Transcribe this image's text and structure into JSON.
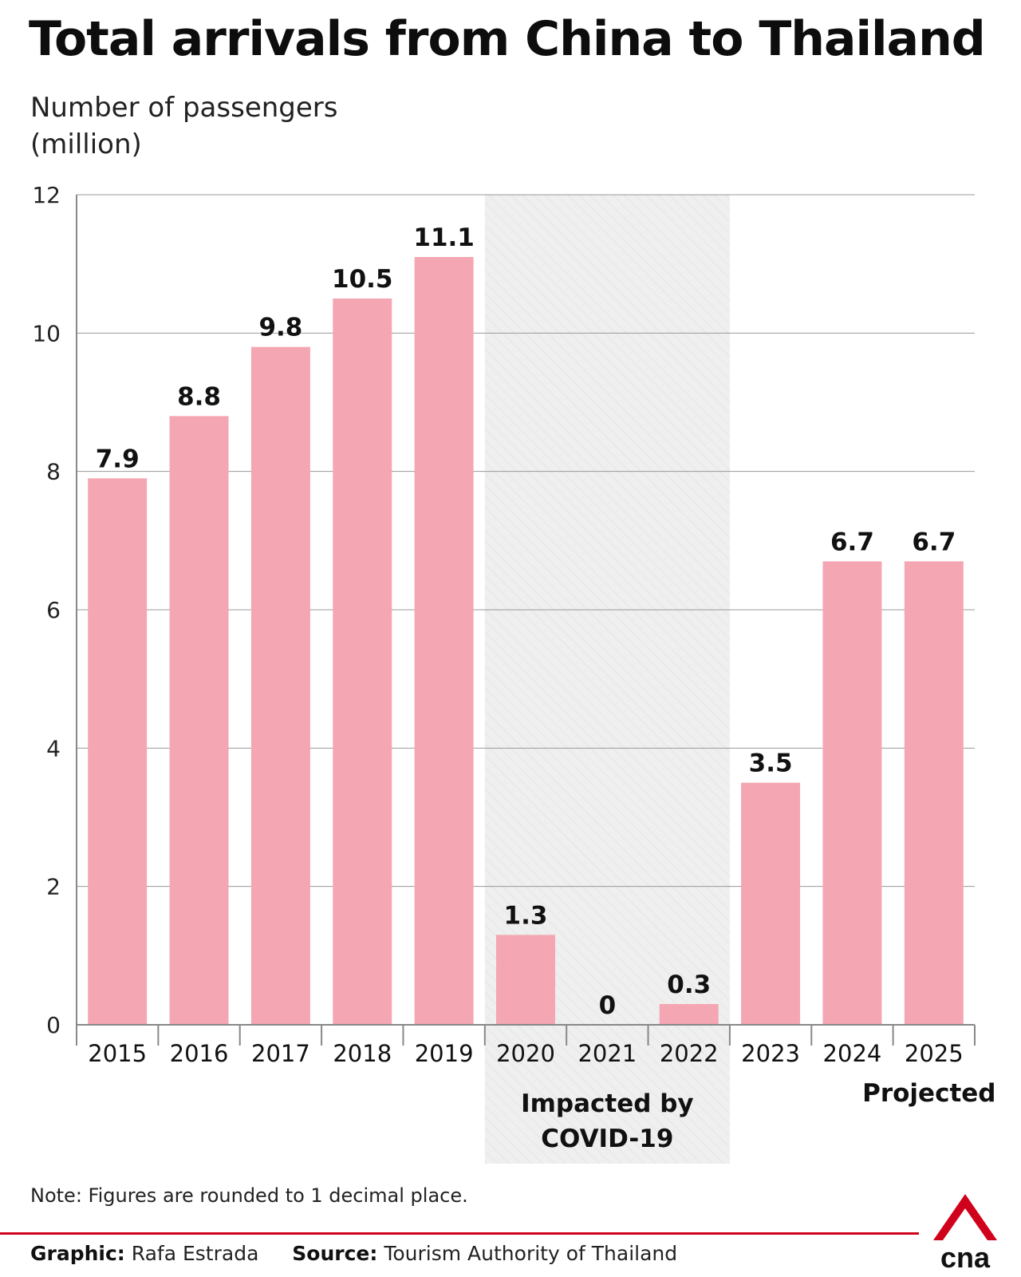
{
  "title": "Total arrivals from China to Thailand",
  "ylabel_lines": [
    "Number of passengers",
    "(million)"
  ],
  "chart_data": {
    "type": "bar",
    "categories": [
      "2015",
      "2016",
      "2017",
      "2018",
      "2019",
      "2020",
      "2021",
      "2022",
      "2023",
      "2024",
      "2025"
    ],
    "values": [
      7.9,
      8.8,
      9.8,
      10.5,
      11.1,
      1.3,
      0,
      0.3,
      3.5,
      6.7,
      6.7
    ],
    "value_labels": [
      "7.9",
      "8.8",
      "9.8",
      "10.5",
      "11.1",
      "1.3",
      "0",
      "0.3",
      "3.5",
      "6.7",
      "6.7"
    ],
    "ylim": [
      0,
      12
    ],
    "yticks": [
      0,
      2,
      4,
      6,
      8,
      10,
      12
    ],
    "grid": true,
    "bar_color": "#f4a7b2",
    "shaded_region": {
      "from_category": "2020",
      "to_category": "2022",
      "label_lines": [
        "Impacted by",
        "COVID-19"
      ],
      "color": "#efefef"
    },
    "category_annotation": {
      "category": "2025",
      "text": "Projected"
    }
  },
  "note": "Note: Figures are rounded to 1 decimal place.",
  "credits": {
    "graphic_label": "Graphic:",
    "graphic_value": "Rafa Estrada",
    "source_label": "Source:",
    "source_value": "Tourism Authority of Thailand"
  },
  "logo": {
    "text": "cna",
    "accent_color": "#d0021b"
  },
  "colors": {
    "accent": "#d0021b",
    "grid": "#999999"
  }
}
